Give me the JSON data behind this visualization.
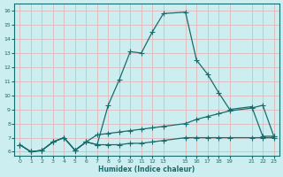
{
  "xlabel": "Humidex (Indice chaleur)",
  "background_color": "#cceef0",
  "grid_color": "#e0b8b8",
  "line_color": "#1a6b6b",
  "line1_x": [
    0,
    1,
    2,
    3,
    4,
    5,
    6,
    7,
    8,
    9,
    10,
    11,
    12,
    13,
    15,
    16,
    17,
    18,
    19,
    21,
    22,
    23
  ],
  "line1_y": [
    6.5,
    6.0,
    6.1,
    6.7,
    7.0,
    6.1,
    6.7,
    6.5,
    9.3,
    11.1,
    13.1,
    13.0,
    14.5,
    15.8,
    15.9,
    12.5,
    11.5,
    10.2,
    9.0,
    9.2,
    7.1,
    7.1
  ],
  "line2_x": [
    0,
    1,
    2,
    3,
    4,
    5,
    6,
    7,
    8,
    9,
    10,
    11,
    12,
    13,
    15,
    16,
    17,
    18,
    19,
    21,
    22,
    23
  ],
  "line2_y": [
    6.5,
    6.0,
    6.1,
    6.7,
    7.0,
    6.1,
    6.7,
    7.2,
    7.3,
    7.4,
    7.5,
    7.6,
    7.7,
    7.8,
    8.0,
    8.3,
    8.5,
    8.7,
    8.9,
    9.1,
    9.3,
    7.1
  ],
  "line3_x": [
    0,
    1,
    2,
    3,
    4,
    5,
    6,
    7,
    8,
    9,
    10,
    11,
    12,
    13,
    15,
    16,
    17,
    18,
    19,
    21,
    22,
    23
  ],
  "line3_y": [
    6.5,
    6.0,
    6.1,
    6.7,
    7.0,
    6.1,
    6.7,
    6.5,
    6.5,
    6.5,
    6.6,
    6.6,
    6.7,
    6.8,
    7.0,
    7.0,
    7.0,
    7.0,
    7.0,
    7.0,
    7.0,
    7.0
  ],
  "xlim": [
    -0.5,
    23.5
  ],
  "ylim": [
    5.7,
    16.5
  ],
  "yticks": [
    6,
    7,
    8,
    9,
    10,
    11,
    12,
    13,
    14,
    15,
    16
  ],
  "xticks": [
    0,
    1,
    2,
    3,
    4,
    5,
    6,
    7,
    8,
    9,
    10,
    11,
    12,
    13,
    15,
    16,
    17,
    18,
    19,
    21,
    22,
    23
  ]
}
